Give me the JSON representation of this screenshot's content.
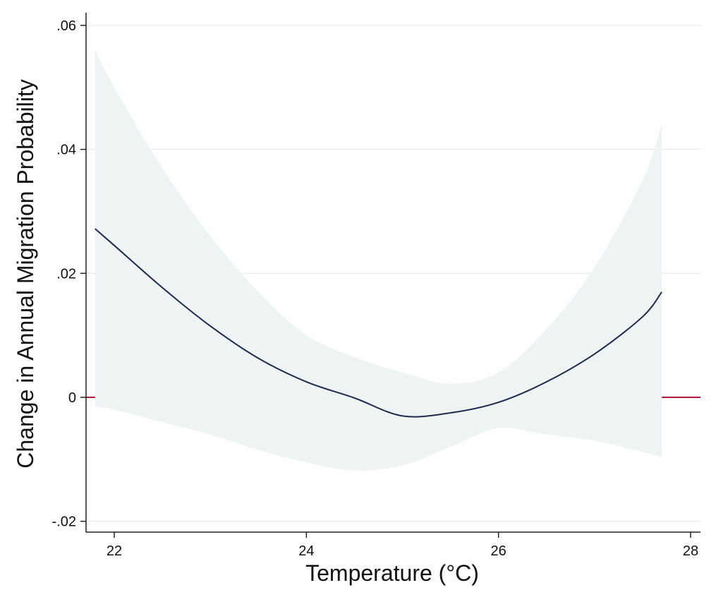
{
  "chart_data": {
    "type": "line",
    "title": "",
    "xlabel": "Temperature (°C)",
    "ylabel": "Change in Annual Migration Probability",
    "xlim": [
      21.8,
      28.1
    ],
    "ylim": [
      -0.021,
      0.062
    ],
    "x_ticks": [
      22,
      24,
      26,
      28
    ],
    "x_tick_labels": [
      "22",
      "24",
      "26",
      "28"
    ],
    "y_ticks": [
      -0.02,
      0,
      0.02,
      0.04,
      0.06
    ],
    "y_tick_labels": [
      "-.02",
      "0",
      ".02",
      ".04",
      ".06"
    ],
    "grid": "horizontal",
    "reference_line": {
      "y": 0,
      "color": "#b5173a"
    },
    "series": [
      {
        "color": "#1f2a4a",
        "x": [
          21.8,
          22.0,
          22.5,
          23.0,
          23.5,
          24.0,
          24.5,
          25.0,
          25.5,
          26.0,
          26.5,
          27.0,
          27.5,
          27.7
        ],
        "values": [
          0.0272,
          0.0245,
          0.0177,
          0.0115,
          0.0063,
          0.0025,
          -0.0001,
          -0.003,
          -0.0025,
          -0.0008,
          0.0025,
          0.007,
          0.013,
          0.017
        ],
        "ci_lower": [
          -0.0015,
          -0.002,
          -0.004,
          -0.006,
          -0.0085,
          -0.0105,
          -0.0118,
          -0.011,
          -0.008,
          -0.005,
          -0.006,
          -0.007,
          -0.0088,
          -0.0096
        ],
        "ci_upper": [
          0.056,
          0.05,
          0.037,
          0.026,
          0.017,
          0.01,
          0.0065,
          0.004,
          0.0022,
          0.004,
          0.011,
          0.021,
          0.035,
          0.044
        ]
      }
    ],
    "colors": {
      "band": "#eef4f4",
      "grid": "#e8eded",
      "axis": "#222222"
    }
  }
}
